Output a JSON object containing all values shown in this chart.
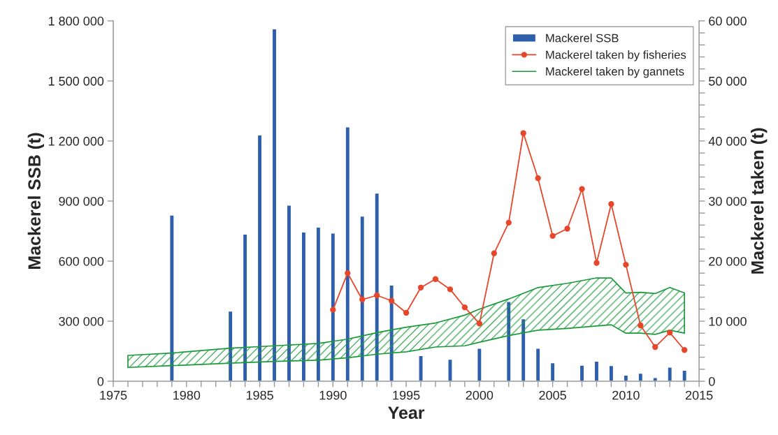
{
  "chart_data": {
    "type": "bar",
    "xlabel": "Year",
    "ylabel": "Mackerel SSB (t)",
    "y2label": "Mackerel taken (t)",
    "xlim": [
      1975,
      2015
    ],
    "xticks": [
      1975,
      {
        "value": 1976,
        "label": null
      },
      {
        "value": 1977,
        "label": null
      },
      {
        "value": 1978,
        "label": null
      },
      {
        "value": 1979,
        "label": null
      },
      1980,
      {
        "value": 1981,
        "label": null
      },
      {
        "value": 1982,
        "label": null
      },
      {
        "value": 1983,
        "label": null
      },
      {
        "value": 1984,
        "label": null
      },
      1985,
      {
        "value": 1986,
        "label": null
      },
      {
        "value": 1987,
        "label": null
      },
      {
        "value": 1988,
        "label": null
      },
      {
        "value": 1989,
        "label": null
      },
      1990,
      {
        "value": 1991,
        "label": null
      },
      {
        "value": 1992,
        "label": null
      },
      {
        "value": 1993,
        "label": null
      },
      {
        "value": 1994,
        "label": null
      },
      1995,
      {
        "value": 1996,
        "label": null
      },
      {
        "value": 1997,
        "label": null
      },
      {
        "value": 1998,
        "label": null
      },
      {
        "value": 1999,
        "label": null
      },
      2000,
      {
        "value": 2001,
        "label": null
      },
      {
        "value": 2002,
        "label": null
      },
      {
        "value": 2003,
        "label": null
      },
      {
        "value": 2004,
        "label": null
      },
      2005,
      {
        "value": 2006,
        "label": null
      },
      {
        "value": 2007,
        "label": null
      },
      {
        "value": 2008,
        "label": null
      },
      {
        "value": 2009,
        "label": null
      },
      2010,
      {
        "value": 2011,
        "label": null
      },
      {
        "value": 2012,
        "label": null
      },
      {
        "value": 2013,
        "label": null
      },
      {
        "value": 2014,
        "label": null
      },
      2015
    ],
    "ylim": [
      0,
      1800000
    ],
    "yticks": [
      0,
      {
        "value": 300000,
        "label": "300 000"
      },
      {
        "value": 600000,
        "label": "600 000"
      },
      {
        "value": 900000,
        "label": "900 000"
      },
      {
        "value": 1200000,
        "label": "1 200 000"
      },
      {
        "value": 1500000,
        "label": "1 500 000"
      },
      {
        "value": 1800000,
        "label": "1 800 000"
      }
    ],
    "y2lim": [
      0,
      60000
    ],
    "y2ticks": [
      0,
      {
        "value": 2000,
        "label": null
      },
      {
        "value": 4000,
        "label": null
      },
      {
        "value": 6000,
        "label": null
      },
      {
        "value": 8000,
        "label": null
      },
      {
        "value": 10000,
        "label": "10 000"
      },
      {
        "value": 12000,
        "label": null
      },
      {
        "value": 14000,
        "label": null
      },
      {
        "value": 16000,
        "label": null
      },
      {
        "value": 18000,
        "label": null
      },
      {
        "value": 20000,
        "label": "20 000"
      },
      {
        "value": 22000,
        "label": null
      },
      {
        "value": 24000,
        "label": null
      },
      {
        "value": 26000,
        "label": null
      },
      {
        "value": 28000,
        "label": null
      },
      {
        "value": 30000,
        "label": "30 000"
      },
      {
        "value": 32000,
        "label": null
      },
      {
        "value": 34000,
        "label": null
      },
      {
        "value": 36000,
        "label": null
      },
      {
        "value": 38000,
        "label": null
      },
      {
        "value": 40000,
        "label": "40 000"
      },
      {
        "value": 42000,
        "label": null
      },
      {
        "value": 44000,
        "label": null
      },
      {
        "value": 46000,
        "label": null
      },
      {
        "value": 48000,
        "label": null
      },
      {
        "value": 50000,
        "label": "50 000"
      },
      {
        "value": 52000,
        "label": null
      },
      {
        "value": 54000,
        "label": null
      },
      {
        "value": 56000,
        "label": null
      },
      {
        "value": 58000,
        "label": null
      },
      {
        "value": 60000,
        "label": "60 000"
      }
    ],
    "legend": "top right",
    "grid": false,
    "series": [
      {
        "name": "Mackerel SSB",
        "color": "#2e5fad",
        "x": [
          1979,
          1983,
          1984,
          1985,
          1986,
          1987,
          1988,
          1989,
          1990,
          1991,
          1992,
          1993,
          1994,
          1996,
          1998,
          2000,
          2002,
          2003,
          2004,
          2005,
          2007,
          2008,
          2009,
          2010,
          2011,
          2012,
          2013,
          2014
        ],
        "values": [
          830000,
          350000,
          735000,
          1230000,
          1760000,
          880000,
          745000,
          770000,
          740000,
          1270000,
          825000,
          940000,
          480000,
          128000,
          110000,
          165000,
          398000,
          312000,
          165000,
          92000,
          80000,
          100000,
          78000,
          30000,
          40000,
          18000,
          70000,
          55000
        ]
      },
      {
        "name": "Mackerel taken by fisheries",
        "type": "line",
        "axis": "y2",
        "color": "#e8462a",
        "marker": "circle",
        "x": [
          1990,
          1991,
          1992,
          1993,
          1994,
          1995,
          1996,
          1997,
          1998,
          1999,
          2000,
          2001,
          2002,
          2003,
          2004,
          2005,
          2006,
          2007,
          2008,
          2009,
          2010,
          2011,
          2012,
          2013,
          2014
        ],
        "values": [
          11900,
          18000,
          13600,
          14300,
          13400,
          11400,
          15600,
          17000,
          15300,
          12300,
          9600,
          21300,
          26400,
          41300,
          33800,
          24200,
          25400,
          32000,
          19700,
          29500,
          19400,
          9300,
          5700,
          8100,
          5200
        ]
      },
      {
        "name": "Mackerel taken by gannets",
        "type": "area",
        "axis": "y2",
        "color": "#1a9a3a",
        "x": [
          1976,
          1979,
          1983,
          1986,
          1989,
          1991,
          1993,
          1995,
          1997,
          1999,
          2000,
          2002,
          2004,
          2006,
          2008,
          2009,
          2010,
          2011,
          2012,
          2013,
          2014
        ],
        "values": [
          null,
          null,
          null,
          null,
          null,
          null,
          null,
          null,
          null,
          null,
          null,
          null,
          null,
          null,
          null,
          null,
          null,
          null,
          null,
          null,
          null
        ],
        "upper": [
          4300,
          4700,
          5500,
          5900,
          6300,
          7000,
          8100,
          9000,
          9700,
          11000,
          12000,
          13700,
          15600,
          16300,
          17200,
          17200,
          14700,
          14800,
          14600,
          15600,
          14700
        ],
        "lower": [
          2300,
          2600,
          3000,
          3300,
          3500,
          3900,
          4500,
          4900,
          5700,
          5900,
          6500,
          7600,
          8500,
          8800,
          9200,
          9400,
          8000,
          8000,
          7800,
          8500,
          8000
        ]
      }
    ]
  }
}
